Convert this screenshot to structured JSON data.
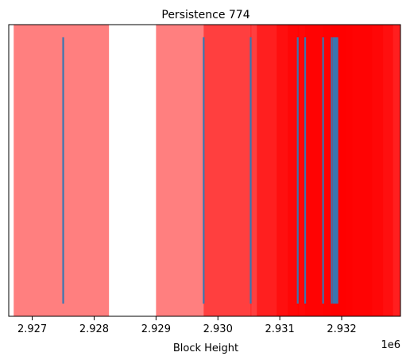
{
  "chart_data": {
    "type": "eventplot",
    "title": "Persistence 774",
    "xlabel": "Block Height",
    "ylabel": "",
    "x_offset_label": "1e6",
    "x_ticks": [
      "2.927",
      "2.928",
      "2.929",
      "2.930",
      "2.931",
      "2.932"
    ],
    "x_tick_values": [
      2927000,
      2928000,
      2929000,
      2930000,
      2931000,
      2932000
    ],
    "xlim": [
      2926620,
      2932950
    ],
    "y_ticks_visible": false,
    "grid": false,
    "legend": "none",
    "events": [
      2927500,
      2929770,
      2930530,
      2931290,
      2931410,
      2931700,
      2931840,
      2931870,
      2931890,
      2931910,
      2931930
    ],
    "event_color": "#3a76b0",
    "intervals": [
      {
        "start": 2926700,
        "end": 2928240
      },
      {
        "start": 2929000,
        "end": 2930540
      },
      {
        "start": 2929770,
        "end": 2931310
      },
      {
        "start": 2930530,
        "end": 2932070
      },
      {
        "start": 2930630,
        "end": 2932170
      },
      {
        "start": 2930950,
        "end": 2932490
      },
      {
        "start": 2931130,
        "end": 2932670
      },
      {
        "start": 2931290,
        "end": 2932830
      },
      {
        "start": 2931410,
        "end": 2932950
      },
      {
        "start": 2931700,
        "end": 2932950
      },
      {
        "start": 2931840,
        "end": 2932950
      }
    ],
    "interval_color": "#ff0000",
    "interval_opacity": 0.5
  }
}
